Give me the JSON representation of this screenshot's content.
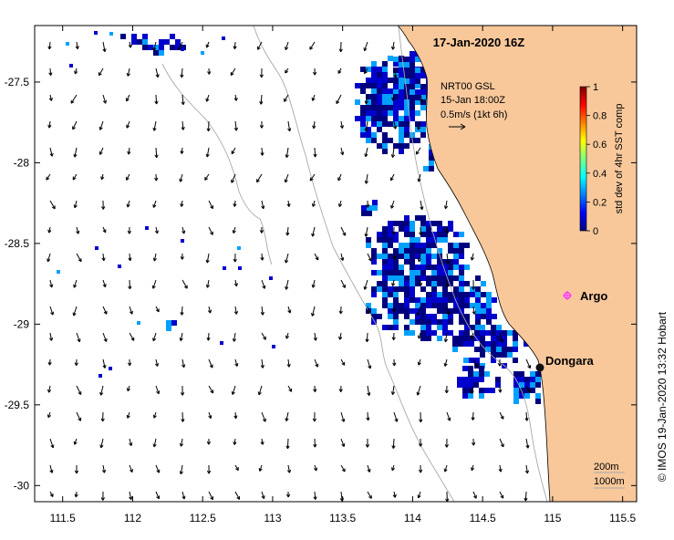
{
  "title": "17-Jan-2020 16Z",
  "current_info": {
    "line1": "NRT00 GSL",
    "line2": "15-Jan 18:00Z",
    "line3": "0.5m/s (1kt 6h)"
  },
  "colorbar": {
    "label": "std dev of 4hr SST comp",
    "ticks": [
      "0",
      "0.2",
      "0.4",
      "0.6",
      "0.8",
      "1"
    ],
    "colors": [
      "#00007f",
      "#0000ff",
      "#0080ff",
      "#00ffff",
      "#80ff80",
      "#ffff00",
      "#ff8000",
      "#ff0000",
      "#7f0000"
    ]
  },
  "places": {
    "dongara": "Dongara",
    "argo": "Argo"
  },
  "depth_legend": {
    "line1": "200m",
    "line2": "1000m"
  },
  "credit": "© IMOS 19-Jan-2020 13:32 Hobart",
  "axes": {
    "x_ticks": [
      "111.5",
      "112",
      "112.5",
      "113",
      "113.5",
      "114",
      "114.5",
      "115",
      "115.5"
    ],
    "y_ticks": [
      "-27.5",
      "-28",
      "-28.5",
      "-29",
      "-29.5",
      "-30"
    ],
    "x_range": [
      111.3,
      115.6
    ],
    "y_range": [
      -30.1,
      -27.15
    ]
  },
  "colors": {
    "land": "#f8c89b",
    "sea": "#ffffff",
    "sst_dark": "#00007f",
    "sst_mid": "#0000cc",
    "sst_light": "#00a0ff",
    "argo": "#ff33ff"
  }
}
